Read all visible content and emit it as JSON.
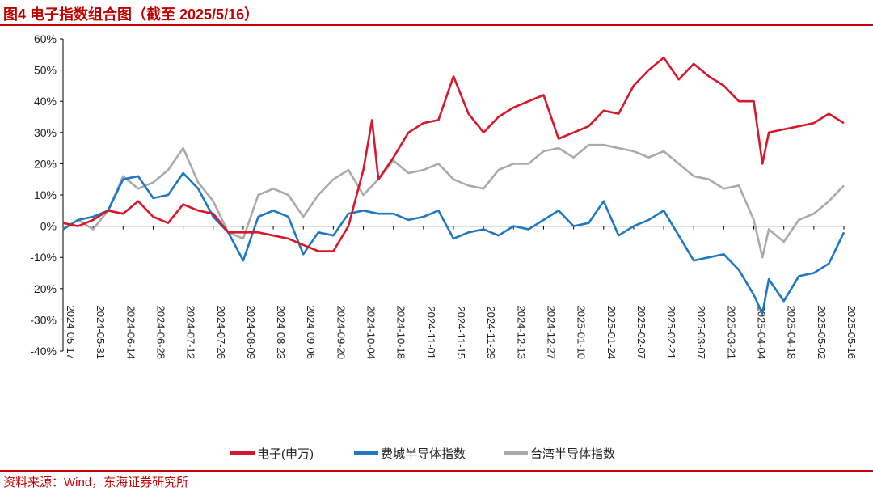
{
  "figure": {
    "title": "图4  电子指数组合图（截至 2025/5/16）",
    "source": "资料来源：Wind，东海证券研究所"
  },
  "colors": {
    "rule": "#C00000",
    "electronics": "#D7182A",
    "sox": "#1F78C1",
    "taiwan": "#AAAAAA"
  },
  "chart_data": {
    "type": "line",
    "title": "",
    "xlabel": "",
    "ylabel": "",
    "ylim": [
      -40,
      60
    ],
    "yticks": [
      "60%",
      "50%",
      "40%",
      "30%",
      "20%",
      "10%",
      "0%",
      "-10%",
      "-20%",
      "-30%",
      "-40%"
    ],
    "x_ticks": [
      "2024-05-17",
      "2024-05-31",
      "2024-06-14",
      "2024-06-28",
      "2024-07-12",
      "2024-07-26",
      "2024-08-09",
      "2024-08-23",
      "2024-09-06",
      "2024-09-20",
      "2024-10-04",
      "2024-10-18",
      "2024-11-01",
      "2024-11-15",
      "2024-11-29",
      "2024-12-13",
      "2024-12-27",
      "2025-01-10",
      "2025-01-24",
      "2025-02-07",
      "2025-02-21",
      "2025-03-07",
      "2025-03-21",
      "2025-04-04",
      "2025-04-18",
      "2025-05-02",
      "2025-05-16"
    ],
    "legend_position": "bottom",
    "series": [
      {
        "name": "电子(申万)",
        "color": "#D7182A",
        "x": [
          "2024-05-17",
          "2024-05-24",
          "2024-05-31",
          "2024-06-07",
          "2024-06-14",
          "2024-06-21",
          "2024-06-28",
          "2024-07-05",
          "2024-07-12",
          "2024-07-19",
          "2024-07-26",
          "2024-08-02",
          "2024-08-09",
          "2024-08-16",
          "2024-08-23",
          "2024-08-30",
          "2024-09-06",
          "2024-09-13",
          "2024-09-20",
          "2024-09-27",
          "2024-10-04",
          "2024-10-08",
          "2024-10-11",
          "2024-10-18",
          "2024-10-25",
          "2024-11-01",
          "2024-11-08",
          "2024-11-15",
          "2024-11-22",
          "2024-11-29",
          "2024-12-06",
          "2024-12-13",
          "2024-12-20",
          "2024-12-27",
          "2025-01-03",
          "2025-01-10",
          "2025-01-17",
          "2025-01-24",
          "2025-01-31",
          "2025-02-07",
          "2025-02-14",
          "2025-02-21",
          "2025-02-28",
          "2025-03-07",
          "2025-03-14",
          "2025-03-21",
          "2025-03-28",
          "2025-04-04",
          "2025-04-08",
          "2025-04-11",
          "2025-04-18",
          "2025-04-25",
          "2025-05-02",
          "2025-05-09",
          "2025-05-16"
        ],
        "y": [
          1,
          0,
          2,
          5,
          4,
          8,
          3,
          1,
          7,
          5,
          4,
          -2,
          -2,
          -2,
          -3,
          -4,
          -6,
          -8,
          -8,
          0,
          18,
          34,
          15,
          22,
          30,
          33,
          34,
          48,
          36,
          30,
          35,
          38,
          40,
          42,
          28,
          30,
          32,
          37,
          36,
          45,
          50,
          54,
          47,
          52,
          48,
          45,
          40,
          40,
          20,
          30,
          31,
          32,
          33,
          36,
          33
        ]
      },
      {
        "name": "费城半导体指数",
        "color": "#1F78C1",
        "x": [
          "2024-05-17",
          "2024-05-24",
          "2024-05-31",
          "2024-06-07",
          "2024-06-14",
          "2024-06-21",
          "2024-06-28",
          "2024-07-05",
          "2024-07-12",
          "2024-07-19",
          "2024-07-26",
          "2024-08-02",
          "2024-08-09",
          "2024-08-16",
          "2024-08-23",
          "2024-08-30",
          "2024-09-06",
          "2024-09-13",
          "2024-09-20",
          "2024-09-27",
          "2024-10-04",
          "2024-10-11",
          "2024-10-18",
          "2024-10-25",
          "2024-11-01",
          "2024-11-08",
          "2024-11-15",
          "2024-11-22",
          "2024-11-29",
          "2024-12-06",
          "2024-12-13",
          "2024-12-20",
          "2024-12-27",
          "2025-01-03",
          "2025-01-10",
          "2025-01-17",
          "2025-01-24",
          "2025-01-31",
          "2025-02-07",
          "2025-02-14",
          "2025-02-21",
          "2025-02-28",
          "2025-03-07",
          "2025-03-14",
          "2025-03-21",
          "2025-03-28",
          "2025-04-04",
          "2025-04-08",
          "2025-04-11",
          "2025-04-18",
          "2025-04-25",
          "2025-05-02",
          "2025-05-09",
          "2025-05-16"
        ],
        "y": [
          -1,
          2,
          3,
          5,
          15,
          16,
          9,
          10,
          17,
          12,
          3,
          -2,
          -11,
          3,
          5,
          3,
          -9,
          -2,
          -3,
          4,
          5,
          4,
          4,
          2,
          3,
          5,
          -4,
          -2,
          -1,
          -3,
          0,
          -1,
          2,
          5,
          0,
          1,
          8,
          -3,
          0,
          2,
          5,
          -3,
          -11,
          -10,
          -9,
          -14,
          -22,
          -28,
          -17,
          -24,
          -16,
          -15,
          -12,
          -2
        ]
      },
      {
        "name": "台湾半导体指数",
        "color": "#AAAAAA",
        "x": [
          "2024-05-17",
          "2024-05-24",
          "2024-05-31",
          "2024-06-07",
          "2024-06-14",
          "2024-06-21",
          "2024-06-28",
          "2024-07-05",
          "2024-07-12",
          "2024-07-19",
          "2024-07-26",
          "2024-08-02",
          "2024-08-09",
          "2024-08-16",
          "2024-08-23",
          "2024-08-30",
          "2024-09-06",
          "2024-09-13",
          "2024-09-20",
          "2024-09-27",
          "2024-10-04",
          "2024-10-11",
          "2024-10-18",
          "2024-10-25",
          "2024-11-01",
          "2024-11-08",
          "2024-11-15",
          "2024-11-22",
          "2024-11-29",
          "2024-12-06",
          "2024-12-13",
          "2024-12-20",
          "2024-12-27",
          "2025-01-03",
          "2025-01-10",
          "2025-01-17",
          "2025-01-24",
          "2025-01-31",
          "2025-02-07",
          "2025-02-14",
          "2025-02-21",
          "2025-02-28",
          "2025-03-07",
          "2025-03-14",
          "2025-03-21",
          "2025-03-28",
          "2025-04-04",
          "2025-04-08",
          "2025-04-11",
          "2025-04-18",
          "2025-04-25",
          "2025-05-02",
          "2025-05-09",
          "2025-05-16"
        ],
        "y": [
          -1,
          2,
          -1,
          5,
          16,
          12,
          14,
          18,
          25,
          14,
          8,
          -2,
          -4,
          10,
          12,
          10,
          3,
          10,
          15,
          18,
          10,
          15,
          21,
          17,
          18,
          20,
          15,
          13,
          12,
          18,
          20,
          20,
          24,
          25,
          22,
          26,
          26,
          25,
          24,
          22,
          24,
          20,
          16,
          15,
          12,
          13,
          2,
          -10,
          -1,
          -5,
          2,
          4,
          8,
          13
        ]
      }
    ]
  }
}
